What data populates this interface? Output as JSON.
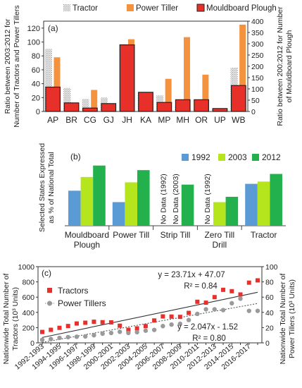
{
  "chart_data": [
    {
      "type": "bar",
      "panel_label": "(a)",
      "categories": [
        "AP",
        "BR",
        "CG",
        "GJ",
        "JH",
        "KA",
        "MP",
        "MH",
        "OR",
        "UP",
        "WB"
      ],
      "series": [
        {
          "name": "Tractor",
          "axis": "left",
          "color": "#c8c8c8",
          "pattern": "dotted",
          "values": [
            90,
            34,
            18,
            20,
            97,
            26,
            23,
            8,
            2,
            3,
            63
          ]
        },
        {
          "name": "Power Tiller",
          "axis": "left",
          "color": "#f5923e",
          "values": [
            78,
            0,
            31,
            0,
            104,
            0,
            47,
            107,
            53,
            0,
            125
          ]
        },
        {
          "name": "Mouldboard Plough",
          "axis": "right",
          "color": "#e8302a",
          "edge": "#222222",
          "values": [
            108,
            38,
            15,
            35,
            295,
            85,
            40,
            52,
            52,
            13,
            115
          ]
        }
      ],
      "ylabel": "Ratio between 2003:2012 for Number of Tractors and Power Tillers",
      "ylim": [
        0,
        130
      ],
      "yticks": [
        0,
        20,
        40,
        60,
        80,
        100,
        120
      ],
      "y2label": "Ratio between 200:2012 for Number of Mouldboard Plough",
      "y2lim": [
        0,
        400
      ],
      "y2ticks": [
        0,
        50,
        100,
        150,
        200,
        250,
        300,
        350,
        400
      ],
      "legend_position": "top"
    },
    {
      "type": "bar",
      "panel_label": "(b)",
      "categories": [
        "Mouldboard Plough",
        "Power Till",
        "Strip Till",
        "Zero Till Drill",
        "Tractor"
      ],
      "category_lines": [
        [
          "Mouldboard",
          "Plough"
        ],
        [
          "Power Till"
        ],
        [
          "Strip Till"
        ],
        [
          "Zero Till",
          "Drill"
        ],
        [
          "Tractor"
        ]
      ],
      "series": [
        {
          "name": "1992",
          "color": "#5b9bd5",
          "values": [
            46,
            31,
            null,
            null,
            55
          ]
        },
        {
          "name": "2003",
          "color": "#b5e61d",
          "values": [
            64,
            57,
            null,
            31,
            58
          ]
        },
        {
          "name": "2012",
          "color": "#22b14c",
          "values": [
            79,
            73,
            54,
            38,
            68
          ]
        }
      ],
      "annotations": {
        "no_data_1992": "No Data (1992)",
        "no_data_2003": "No Data (2003)"
      },
      "ylabel": "Selected States Expressed as % of National Total",
      "ylim": [
        0,
        100
      ],
      "legend_position": "top-right"
    },
    {
      "type": "scatter",
      "panel_label": "(c)",
      "x": [
        "1992-1993",
        "1993-1994",
        "1994-1995",
        "1995-1996",
        "1996-1997",
        "1997-1998",
        "1998-1999",
        "1999-2000",
        "2000-2001",
        "2001-2002",
        "2002-2003",
        "2003-2004",
        "2004-2005",
        "2005-2006",
        "2006-2007",
        "2007-2008",
        "2008-2009",
        "2009-2010",
        "2010-2011",
        "2011-2012",
        "2012-2013",
        "2013-2014",
        "2014-2015",
        "2015-2016",
        "2016-2017",
        "2017-2018"
      ],
      "xtick_labels": [
        "1992-1993",
        "1994-1995",
        "1996-1997",
        "1998-1999",
        "2000-2001",
        "2002-2003",
        "2004-2005",
        "2006-2007",
        "2008-2009",
        "2010-2011",
        "2012-2013",
        "2014-2015",
        "2016-2017"
      ],
      "series": [
        {
          "name": "Tractors",
          "axis": "left",
          "marker": "square",
          "color": "#e8302a",
          "values": [
            143,
            171,
            197,
            221,
            254,
            264,
            277,
            271,
            269,
            225,
            171,
            190,
            220,
            294,
            347,
            345,
            341,
            393,
            539,
            527,
            600,
            696,
            678,
            635,
            790,
            820
          ]
        },
        {
          "name": "Power Tillers",
          "axis": "right",
          "marker": "circle",
          "color": "#9a9a9a",
          "values": [
            4.0,
            5.0,
            6.5,
            7.5,
            8.0,
            8.5,
            10.0,
            12.0,
            13.0,
            14.5,
            13.0,
            14.0,
            16.0,
            17.0,
            22.0,
            24.0,
            25.0,
            30.0,
            38.0,
            44.0,
            44.0,
            43.0,
            52.0,
            58.0,
            42.0,
            42.0
          ]
        }
      ],
      "trendlines": [
        {
          "series": "Tractors",
          "equation": "y = 23.71x + 47.07",
          "r2": "R² = 0.84",
          "slope": 23.71,
          "intercept": 47.07,
          "style": "solid"
        },
        {
          "series": "Power Tillers",
          "equation": "y = 2.047x - 1.52",
          "r2": "R² = 0.80",
          "slope": 2.047,
          "intercept": -1.52,
          "style": "dotted"
        }
      ],
      "ylabel": "Nationwide Total Number of Tractors (10³ Units)",
      "ylim": [
        0,
        1000
      ],
      "yticks": [
        0,
        200,
        400,
        600,
        800,
        1000
      ],
      "y2label": "Nationwide Total Number of Power Tillers (10³ Units)",
      "y2lim": [
        0,
        100
      ],
      "y2ticks": [
        0,
        20,
        40,
        60,
        80,
        100
      ],
      "legend_position": "top-left"
    }
  ]
}
